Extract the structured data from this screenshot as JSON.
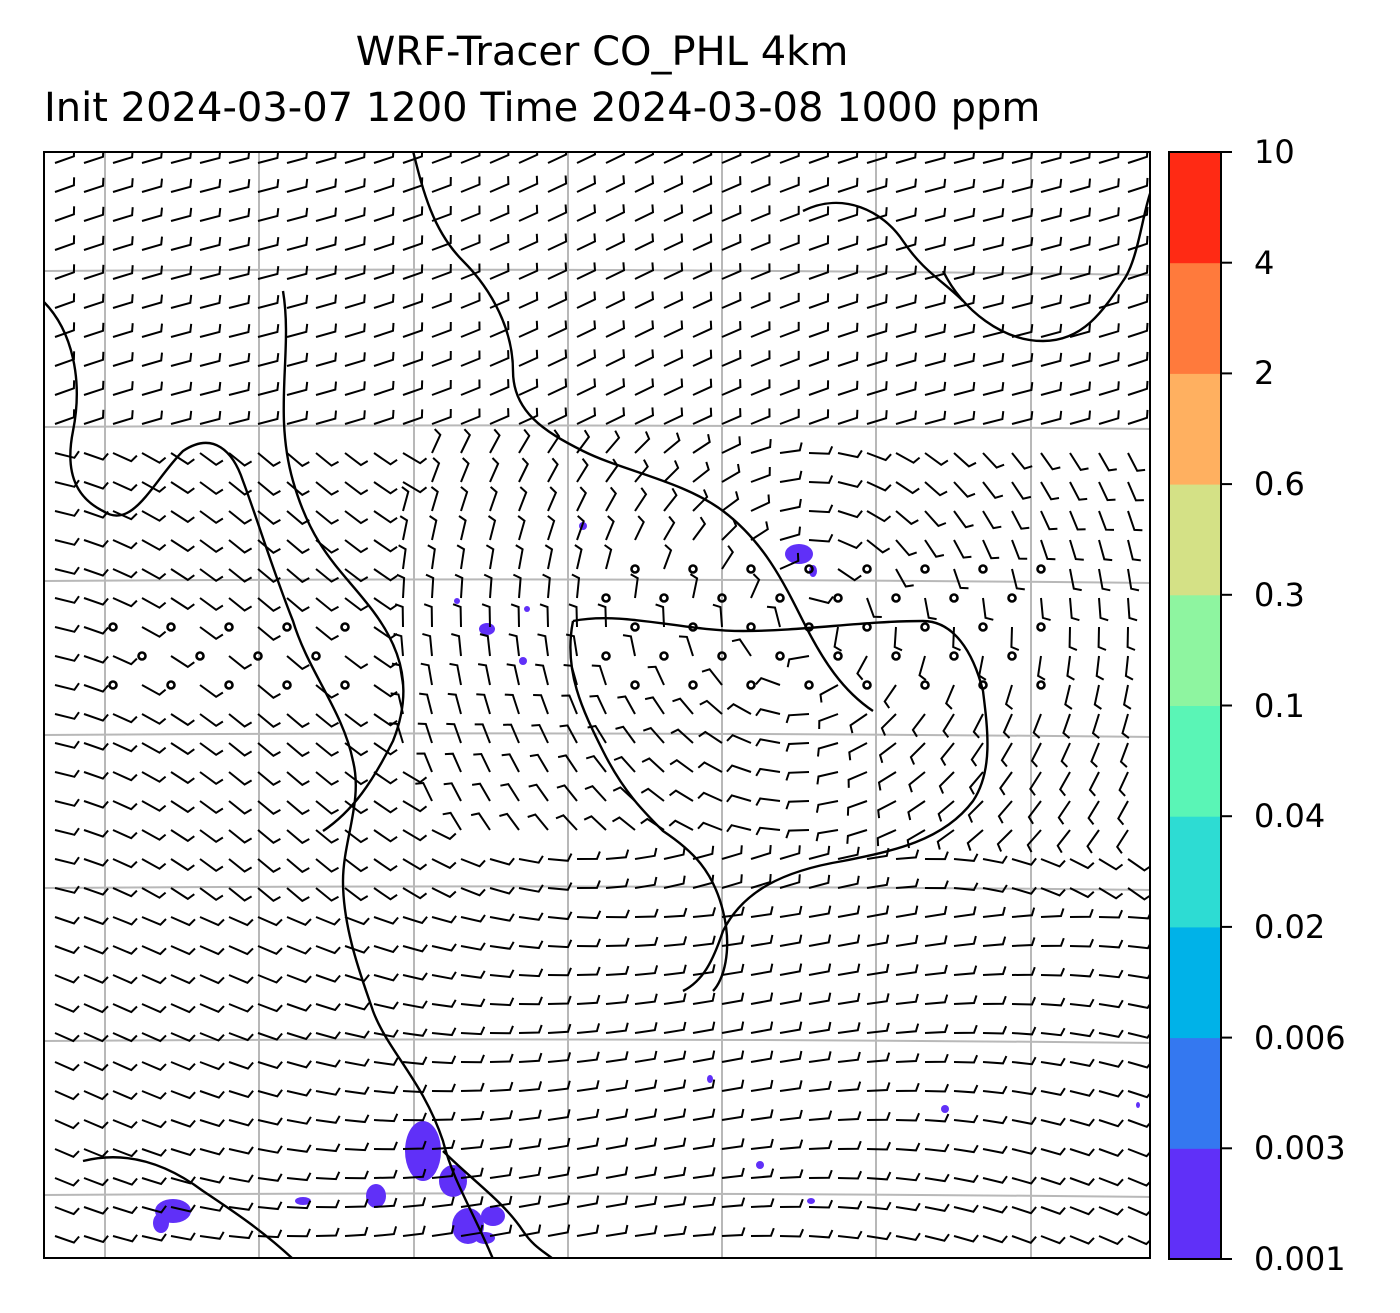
{
  "title": {
    "line1": "WRF-Tracer CO_PHL 4km",
    "line2": "Init 2024-03-07 1200 Time 2024-03-08 1000 ppm"
  },
  "map": {
    "grid": true,
    "wind_barbs": true,
    "coastlines": true,
    "tracer_color": "#6030f8"
  },
  "colorbar": {
    "levels": [
      "0.001",
      "0.003",
      "0.006",
      "0.02",
      "0.04",
      "0.1",
      "0.3",
      "0.6",
      "2",
      "4",
      "10"
    ],
    "colors": [
      "#6030f8",
      "#3478f0",
      "#00b2e8",
      "#2ddcd3",
      "#5af5b6",
      "#8ef5a0",
      "#d4e186",
      "#ffb060",
      "#ff7a3c",
      "#ff2a14"
    ]
  }
}
